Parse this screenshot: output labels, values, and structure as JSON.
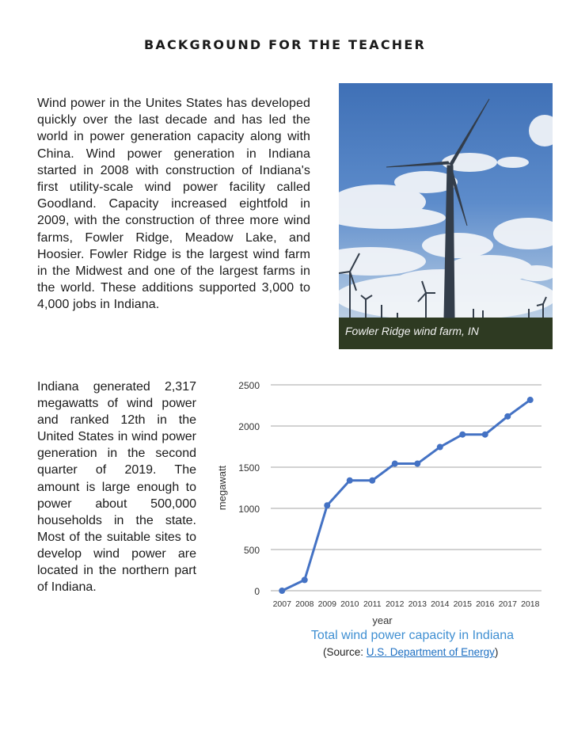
{
  "title": "Background for the Teacher",
  "paragraph1": "Wind power in the Unites States has developed quickly over the last decade and has led the world in power generation capacity along with China.  Wind power generation in Indiana started in 2008 with construction of Indiana's first utility-scale wind power facility called Goodland. Capacity increased eightfold in 2009, with the construction of three more wind farms, Fowler Ridge, Meadow Lake, and Hoosier. Fowler Ridge is the largest wind farm in the Midwest and one of the largest farms in the world. These additions supported 3,000 to 4,000 jobs in Indiana.",
  "paragraph2": "Indiana generated 2,317 megawatts of wind power and ranked 12th in the United States in wind power generation in the second quarter of 2019. The amount is large enough to power about 500,000 households in the state. Most of the suitable sites to develop wind power are located in the northern part of Indiana.",
  "photo": {
    "caption": "Fowler Ridge wind farm, IN"
  },
  "chart_data": {
    "type": "line",
    "title": "Total wind power capacity in Indiana",
    "xlabel": "year",
    "ylabel": "megawatt",
    "categories": [
      "2007",
      "2008",
      "2009",
      "2010",
      "2011",
      "2012",
      "2013",
      "2014",
      "2015",
      "2016",
      "2017",
      "2018"
    ],
    "values": [
      0,
      131,
      1036,
      1339,
      1339,
      1543,
      1543,
      1745,
      1897,
      1897,
      2117,
      2317
    ],
    "ylim": [
      0,
      2500
    ],
    "yticks": [
      "0",
      "500",
      "1000",
      "1500",
      "2000",
      "2500"
    ],
    "grid": true,
    "color": "#4472c4"
  },
  "source": {
    "prefix": "(Source: ",
    "link": "U.S. Department of Energy",
    "suffix": ")"
  }
}
